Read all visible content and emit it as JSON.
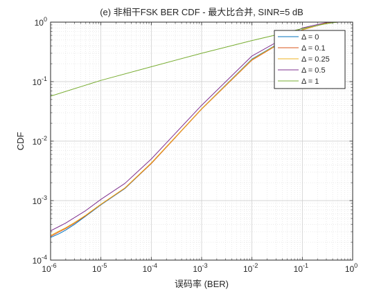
{
  "chart_data": {
    "type": "line",
    "title": "(e) 非相干FSK BER CDF - 最大比合并, SINR=5 dB",
    "xlabel": "误码率 (BER)",
    "ylabel": "CDF",
    "xscale": "log",
    "yscale": "log",
    "xlim": [
      1e-06,
      1
    ],
    "ylim": [
      0.0001,
      1
    ],
    "grid": true,
    "minor_grid": true,
    "legend_position": "top-right",
    "x_ticks": [
      {
        "value": 1e-06,
        "base": "10",
        "exp": "-6"
      },
      {
        "value": 1e-05,
        "base": "10",
        "exp": "-5"
      },
      {
        "value": 0.0001,
        "base": "10",
        "exp": "-4"
      },
      {
        "value": 0.001,
        "base": "10",
        "exp": "-3"
      },
      {
        "value": 0.01,
        "base": "10",
        "exp": "-2"
      },
      {
        "value": 0.1,
        "base": "10",
        "exp": "-1"
      },
      {
        "value": 1,
        "base": "10",
        "exp": "0"
      }
    ],
    "y_ticks": [
      {
        "value": 0.0001,
        "base": "10",
        "exp": "-4"
      },
      {
        "value": 0.001,
        "base": "10",
        "exp": "-3"
      },
      {
        "value": 0.01,
        "base": "10",
        "exp": "-2"
      },
      {
        "value": 0.1,
        "base": "10",
        "exp": "-1"
      },
      {
        "value": 1,
        "base": "10",
        "exp": "0"
      }
    ],
    "series": [
      {
        "name": "Δ = 0",
        "color": "#0072BD",
        "x": [
          1e-06,
          1.5e-06,
          2e-06,
          3e-06,
          5e-06,
          1e-05,
          3e-05,
          0.0001,
          0.001,
          0.01,
          0.1,
          0.3,
          0.5
        ],
        "y": [
          0.00024,
          0.00028,
          0.00032,
          0.0004,
          0.00055,
          0.00085,
          0.0016,
          0.0042,
          0.035,
          0.24,
          0.75,
          0.97,
          1.0
        ]
      },
      {
        "name": "Δ = 0.1",
        "color": "#D95319",
        "x": [
          1e-06,
          1.5e-06,
          2e-06,
          3e-06,
          5e-06,
          1e-05,
          3e-05,
          0.0001,
          0.001,
          0.01,
          0.1,
          0.3,
          0.5
        ],
        "y": [
          0.00025,
          0.0003,
          0.00034,
          0.00042,
          0.00056,
          0.00086,
          0.00162,
          0.0042,
          0.0345,
          0.23,
          0.74,
          0.965,
          1.0
        ]
      },
      {
        "name": "Δ = 0.25",
        "color": "#EDB120",
        "x": [
          1e-06,
          1.5e-06,
          2e-06,
          3e-06,
          5e-06,
          1e-05,
          3e-05,
          0.0001,
          0.001,
          0.01,
          0.1,
          0.3,
          0.5
        ],
        "y": [
          0.00026,
          0.00031,
          0.00035,
          0.00043,
          0.00057,
          0.00087,
          0.00164,
          0.0043,
          0.035,
          0.235,
          0.745,
          0.968,
          1.0
        ]
      },
      {
        "name": "Δ = 0.5",
        "color": "#7E2F8E",
        "x": [
          1e-06,
          1.5e-06,
          2e-06,
          3e-06,
          5e-06,
          1e-05,
          3e-05,
          0.0001,
          0.001,
          0.01,
          0.1,
          0.3,
          0.5
        ],
        "y": [
          0.00031,
          0.00037,
          0.00042,
          0.00052,
          0.00068,
          0.00105,
          0.00195,
          0.005,
          0.04,
          0.27,
          0.8,
          0.985,
          1.0
        ]
      },
      {
        "name": "Δ = 1",
        "color": "#77AC30",
        "x": [
          1e-06,
          1e-05,
          0.0001,
          0.001,
          0.01,
          0.03,
          0.1,
          0.3,
          0.5
        ],
        "y": [
          0.057,
          0.105,
          0.178,
          0.3,
          0.49,
          0.61,
          0.78,
          0.94,
          1.0
        ]
      }
    ]
  }
}
